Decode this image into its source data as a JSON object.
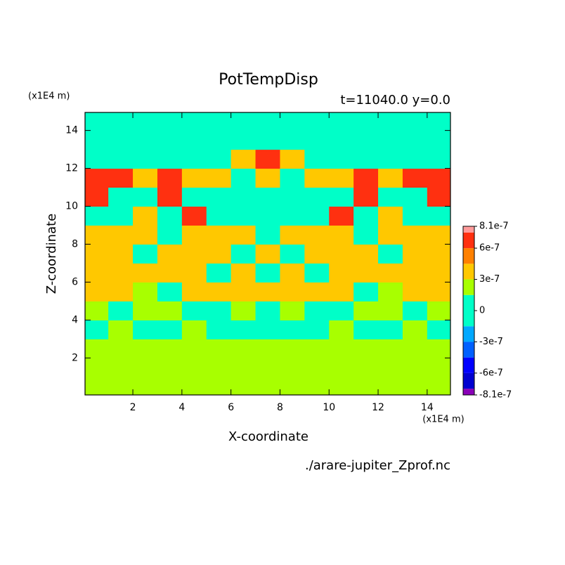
{
  "chart_data": {
    "type": "contour",
    "title": "PotTempDisp",
    "subtitle": "t=11040.0 y=0.0",
    "x_label": "X-coordinate",
    "y_label": "Z-coordinate",
    "x_unit": "(x1E4 m)",
    "y_unit": "(x1E4 m)",
    "source": "./arare-jupiter_Zprof.nc",
    "xlim": [
      0.05,
      14.95
    ],
    "ylim": [
      0.05,
      14.95
    ],
    "xticks": [
      2,
      4,
      6,
      8,
      10,
      12,
      14
    ],
    "yticks": [
      2,
      4,
      6,
      8,
      10,
      12,
      14
    ],
    "x": [
      0.5,
      1.5,
      2.5,
      3.5,
      4.5,
      5.5,
      6.5,
      7.5,
      8.5,
      9.5,
      10.5,
      11.5,
      12.5,
      13.5,
      14.5
    ],
    "y": [
      0.5,
      1.5,
      2.5,
      3.5,
      4.5,
      5.5,
      6.5,
      7.5,
      8.5,
      9.5,
      10.5,
      11.5,
      12.5,
      13.5,
      14.5
    ],
    "z": [
      [
        2e-07,
        2e-07,
        2e-07,
        2e-07,
        2e-07,
        2e-07,
        2e-07,
        2e-07,
        2e-07,
        2e-07,
        2e-07,
        2e-07,
        2e-07,
        2e-07,
        2e-07
      ],
      [
        2e-07,
        2e-07,
        2e-07,
        2e-07,
        2e-07,
        2e-07,
        2e-07,
        2e-07,
        2e-07,
        2e-07,
        2e-07,
        2e-07,
        2e-07,
        2e-07,
        2e-07
      ],
      [
        2e-07,
        2e-07,
        2e-07,
        2e-07,
        2e-07,
        2e-07,
        2e-07,
        2e-07,
        2e-07,
        2e-07,
        2e-07,
        2e-07,
        2e-07,
        2e-07,
        2e-07
      ],
      [
        0,
        2e-07,
        0,
        0,
        2e-07,
        0,
        0,
        0,
        0,
        0,
        2e-07,
        0,
        0,
        2e-07,
        0
      ],
      [
        2e-07,
        0,
        2e-07,
        2e-07,
        0,
        0,
        2e-07,
        0,
        2e-07,
        0,
        0,
        2e-07,
        2e-07,
        0,
        2e-07
      ],
      [
        4e-07,
        4e-07,
        2e-07,
        0,
        4e-07,
        4e-07,
        4e-07,
        4e-07,
        4e-07,
        4e-07,
        4e-07,
        0,
        2e-07,
        4e-07,
        4e-07
      ],
      [
        4e-07,
        4e-07,
        4e-07,
        4e-07,
        4e-07,
        0,
        4e-07,
        0,
        4e-07,
        0,
        4e-07,
        4e-07,
        4e-07,
        4e-07,
        4e-07
      ],
      [
        4e-07,
        4e-07,
        0,
        4e-07,
        4e-07,
        4e-07,
        0,
        4e-07,
        0,
        4e-07,
        4e-07,
        4e-07,
        0,
        4e-07,
        4e-07
      ],
      [
        4e-07,
        4e-07,
        4e-07,
        0,
        4e-07,
        4e-07,
        4e-07,
        0,
        4e-07,
        4e-07,
        4e-07,
        0,
        4e-07,
        4e-07,
        4e-07
      ],
      [
        0,
        0,
        4e-07,
        0,
        6.5e-07,
        0,
        0,
        0,
        0,
        0,
        6.5e-07,
        0,
        4e-07,
        0,
        0
      ],
      [
        6.5e-07,
        0,
        0,
        6.5e-07,
        0,
        0,
        0,
        0,
        0,
        0,
        0,
        6.5e-07,
        0,
        0,
        6.5e-07
      ],
      [
        6.5e-07,
        6.5e-07,
        4e-07,
        6.5e-07,
        4e-07,
        4e-07,
        0,
        4e-07,
        0,
        4e-07,
        4e-07,
        6.5e-07,
        4e-07,
        6.5e-07,
        6.5e-07
      ],
      [
        0,
        0,
        0,
        0,
        0,
        0,
        4e-07,
        6.5e-07,
        4e-07,
        0,
        0,
        0,
        0,
        0,
        0
      ],
      [
        0,
        0,
        0,
        0,
        0,
        0,
        0,
        0,
        0,
        0,
        0,
        0,
        0,
        0,
        0
      ],
      [
        0,
        0,
        0,
        0,
        0,
        0,
        0,
        0,
        0,
        0,
        0,
        0,
        0,
        0,
        0
      ]
    ],
    "levels": [
      -8.1e-07,
      -7.5e-07,
      -6e-07,
      -4.5e-07,
      -3e-07,
      -1.5e-07,
      1.5e-07,
      3e-07,
      4.5e-07,
      6e-07,
      7.5e-07,
      8.1e-07
    ],
    "colors": [
      "#8a00b8",
      "#0000d0",
      "#0000ff",
      "#0060ff",
      "#00a8ff",
      "#00ffc8",
      "#a8ff00",
      "#ffc800",
      "#ff8000",
      "#ff3010",
      "#ff9b9b"
    ],
    "colorbar_ticks": [
      -8.1e-07,
      -6e-07,
      -3e-07,
      0,
      3e-07,
      6e-07,
      8.1e-07
    ]
  }
}
